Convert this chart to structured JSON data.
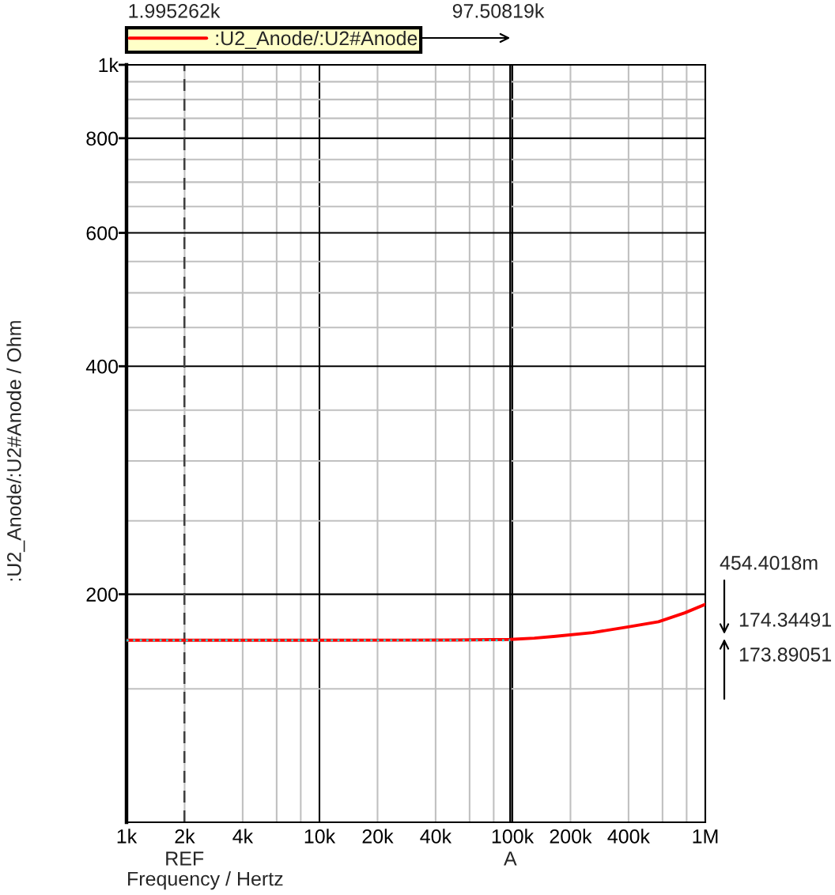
{
  "chart_data": {
    "type": "line",
    "xlabel": "Frequency / Hertz",
    "ylabel": ":U2_Anode/:U2#Anode / Ohm",
    "log": "xy",
    "xlim": [
      1000,
      1000000
    ],
    "ylim": [
      100,
      1000
    ],
    "xticks": [
      {
        "value": 1000,
        "label": "1k"
      },
      {
        "value": 2000,
        "label": "2k"
      },
      {
        "value": 4000,
        "label": "4k"
      },
      {
        "value": 6000,
        "label": null
      },
      {
        "value": 8000,
        "label": null
      },
      {
        "value": 10000,
        "label": "10k"
      },
      {
        "value": 20000,
        "label": "20k"
      },
      {
        "value": 40000,
        "label": "40k"
      },
      {
        "value": 60000,
        "label": null
      },
      {
        "value": 80000,
        "label": null
      },
      {
        "value": 100000,
        "label": "100k"
      },
      {
        "value": 200000,
        "label": "200k"
      },
      {
        "value": 400000,
        "label": "400k"
      },
      {
        "value": 600000,
        "label": null
      },
      {
        "value": 800000,
        "label": null
      },
      {
        "value": 1000000,
        "label": "1M"
      }
    ],
    "yticks": [
      {
        "value": 150,
        "label": null
      },
      200,
      {
        "value": 250,
        "label": null
      },
      {
        "value": 300,
        "label": null
      },
      {
        "value": 350,
        "label": null
      },
      400,
      {
        "value": 450,
        "label": null
      },
      {
        "value": 500,
        "label": null
      },
      {
        "value": 550,
        "label": null
      },
      600,
      {
        "value": 650,
        "label": null
      },
      {
        "value": 700,
        "label": null
      },
      {
        "value": 750,
        "label": null
      },
      800,
      {
        "value": 850,
        "label": null
      },
      {
        "value": 900,
        "label": null
      },
      {
        "value": 950,
        "label": null
      },
      {
        "value": 1000,
        "label": "1k"
      }
    ],
    "grid": true,
    "legend": "top left",
    "series": [
      {
        "name": ":U2_Anode/:U2#Anode",
        "color": "#ff0000",
        "x": [
          1000,
          1995.262,
          10000,
          50000,
          97508.19,
          130000,
          168000,
          261000,
          393000,
          572000,
          783000,
          1000000
        ],
        "values": [
          173.89,
          173.89,
          173.9,
          174.0,
          174.34,
          175,
          176,
          178,
          181,
          184,
          189,
          194
        ]
      },
      {
        "color": "#33cccc",
        "line_style": "dotted",
        "x": [
          1000,
          97508.19
        ],
        "values": [
          173.89051,
          173.89051
        ]
      }
    ],
    "ref_lines": [
      {
        "axis": "x",
        "value": 1995.262,
        "label": "REF",
        "color": "#404040",
        "line_style": "dashed"
      },
      {
        "axis": "x",
        "value": 97508.19,
        "label": "A",
        "color": "#000000",
        "line_style": "solid"
      }
    ],
    "annotations": [
      "1.995262k",
      "97.50819k",
      "454.4018m",
      "174.34491",
      "173.89051"
    ]
  }
}
